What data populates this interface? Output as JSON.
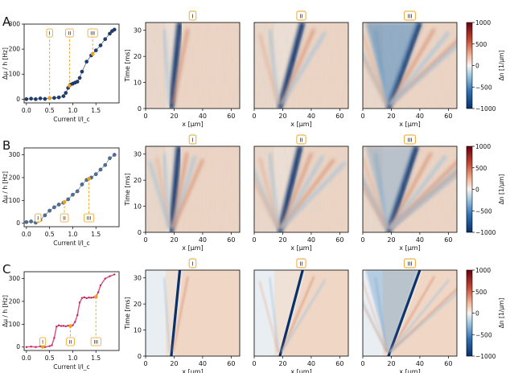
{
  "panels": [
    {
      "letter": "A"
    },
    {
      "letter": "B"
    },
    {
      "letter": "C"
    }
  ],
  "roman": [
    "I",
    "II",
    "III"
  ],
  "colors": {
    "panel_A_points": "#1f3b73",
    "panel_B_points": "#4f6f94",
    "panel_C_points": "#c8245a",
    "marker": "#f0a01e",
    "neg": "#08306b",
    "zero": "#f7f3ef",
    "pos": "#67000d"
  },
  "colorbar": {
    "label": "Δn [1/μm]",
    "ticks": [
      "1000",
      "500",
      "0",
      "−500",
      "−1000"
    ]
  },
  "kymo_axes": {
    "xlabel": "x [μm]",
    "ylabel": "Time [ms]",
    "xticks": [
      "0",
      "20",
      "40",
      "60"
    ],
    "yticks": [
      "0",
      "10",
      "20",
      "30"
    ]
  },
  "chart_data": [
    {
      "type": "line",
      "panel": "A",
      "xlabel": "Current I/I_c",
      "ylabel": "Δμ / h [Hz]",
      "xlim": [
        -0.05,
        2.0
      ],
      "ylim": [
        -15,
        300
      ],
      "xticks": [
        "0.0",
        "0.5",
        "1.0",
        "1.5"
      ],
      "yticks": [
        "0",
        "100",
        "200",
        "300"
      ],
      "markers": [
        {
          "label": "I",
          "x": 0.5
        },
        {
          "label": "II",
          "x": 0.93
        },
        {
          "label": "III",
          "x": 1.43
        }
      ],
      "series": [
        {
          "x": [
            0,
            0.1,
            0.2,
            0.3,
            0.4,
            0.5,
            0.6,
            0.7,
            0.8,
            0.85,
            0.9,
            0.95,
            1.0,
            1.05,
            1.1,
            1.15,
            1.2,
            1.3,
            1.4,
            1.5,
            1.6,
            1.7,
            1.8,
            1.85,
            1.9
          ],
          "y": [
            0,
            2,
            0,
            3,
            1,
            4,
            5,
            7,
            12,
            25,
            45,
            58,
            62,
            66,
            70,
            85,
            110,
            150,
            175,
            195,
            215,
            240,
            262,
            272,
            278
          ]
        }
      ]
    },
    {
      "type": "line",
      "panel": "B",
      "xlabel": "Current I/I_c",
      "ylabel": "Δμ / h [Hz]",
      "xlim": [
        -0.05,
        2.0
      ],
      "ylim": [
        -15,
        330
      ],
      "xticks": [
        "0.0",
        "0.5",
        "1.0",
        "1.5"
      ],
      "yticks": [
        "0",
        "100",
        "200",
        "300"
      ],
      "markers": [
        {
          "label": "I",
          "x": 0.25
        },
        {
          "label": "II",
          "x": 0.82
        },
        {
          "label": "III",
          "x": 1.35
        }
      ],
      "series": [
        {
          "x": [
            0,
            0.1,
            0.2,
            0.3,
            0.4,
            0.5,
            0.6,
            0.7,
            0.8,
            0.9,
            1.0,
            1.1,
            1.2,
            1.3,
            1.4,
            1.5,
            1.6,
            1.7,
            1.8,
            1.9
          ],
          "y": [
            5,
            8,
            3,
            15,
            35,
            55,
            70,
            82,
            90,
            105,
            125,
            140,
            170,
            190,
            200,
            215,
            235,
            255,
            285,
            300
          ]
        }
      ]
    },
    {
      "type": "line",
      "panel": "C",
      "xlabel": "Current I/I_c",
      "ylabel": "Δμ / h [Hz]",
      "xlim": [
        -0.05,
        2.0
      ],
      "ylim": [
        -15,
        330
      ],
      "xticks": [
        "0.0",
        "0.5",
        "1.0",
        "1.5"
      ],
      "yticks": [
        "0",
        "100",
        "200",
        "300"
      ],
      "markers": [
        {
          "label": "I",
          "x": 0.35
        },
        {
          "label": "II",
          "x": 0.95
        },
        {
          "label": "III",
          "x": 1.5
        }
      ],
      "series": [
        {
          "x": [
            0,
            0.1,
            0.2,
            0.3,
            0.4,
            0.5,
            0.55,
            0.6,
            0.65,
            0.7,
            0.75,
            0.8,
            0.85,
            0.9,
            0.95,
            1.0,
            1.05,
            1.1,
            1.15,
            1.2,
            1.25,
            1.3,
            1.35,
            1.4,
            1.45,
            1.5,
            1.55,
            1.6,
            1.7,
            1.8,
            1.9
          ],
          "y": [
            0,
            2,
            0,
            3,
            0,
            4,
            8,
            40,
            90,
            95,
            92,
            93,
            91,
            94,
            92,
            95,
            110,
            140,
            195,
            215,
            218,
            214,
            217,
            216,
            218,
            220,
            240,
            270,
            300,
            310,
            318
          ]
        }
      ]
    }
  ]
}
